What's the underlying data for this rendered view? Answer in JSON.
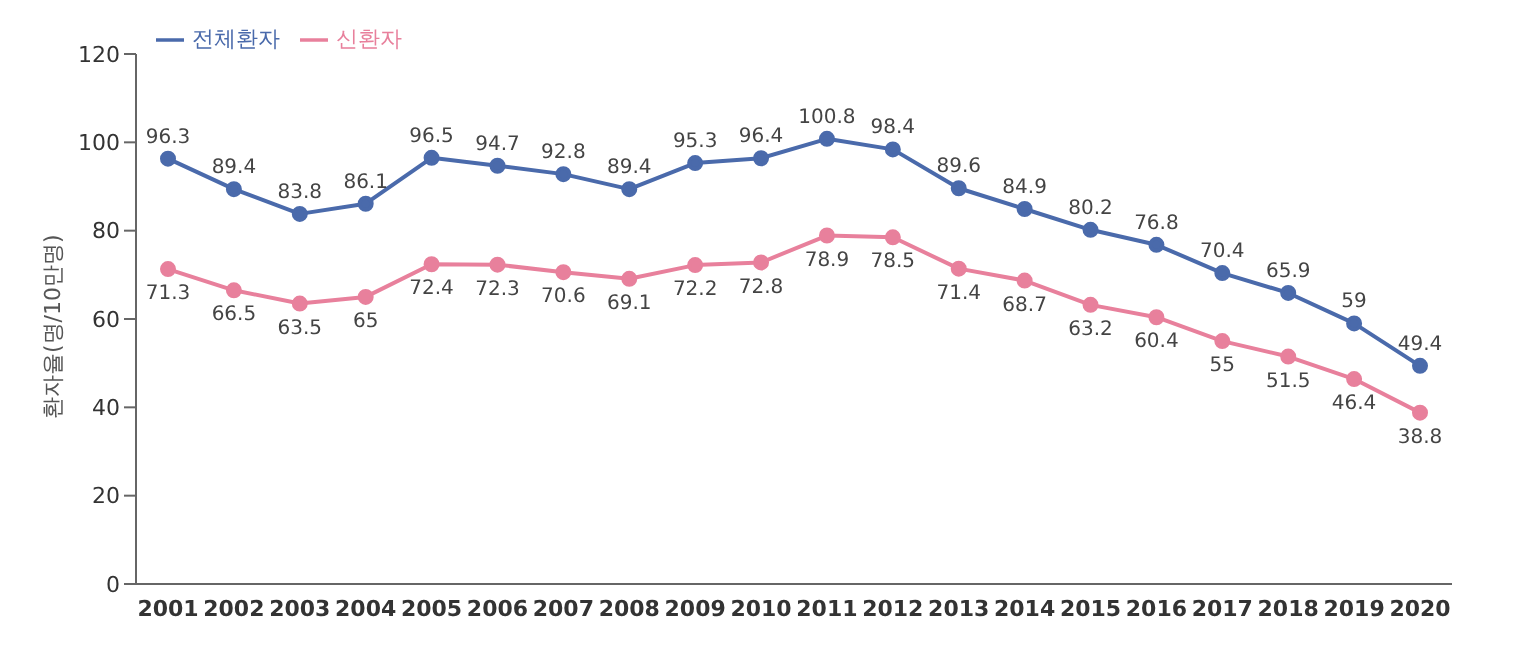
{
  "chart_data": {
    "type": "line",
    "ylabel": "환자율(명/10만명)",
    "categories": [
      "2001",
      "2002",
      "2003",
      "2004",
      "2005",
      "2006",
      "2007",
      "2008",
      "2009",
      "2010",
      "2011",
      "2012",
      "2013",
      "2014",
      "2015",
      "2016",
      "2017",
      "2018",
      "2019",
      "2020"
    ],
    "series": [
      {
        "name": "전체환자",
        "color": "#4a6aab",
        "values": [
          96.3,
          89.4,
          83.8,
          86.1,
          96.5,
          94.7,
          92.8,
          89.4,
          95.3,
          96.4,
          100.8,
          98.4,
          89.6,
          84.9,
          80.2,
          76.8,
          70.4,
          65.9,
          59,
          49.4
        ]
      },
      {
        "name": "신환자",
        "color": "#e8809c",
        "values": [
          71.3,
          66.5,
          63.5,
          65,
          72.4,
          72.3,
          70.6,
          69.1,
          72.2,
          72.8,
          78.9,
          78.5,
          71.4,
          68.7,
          63.2,
          60.4,
          55,
          51.5,
          46.4,
          38.8
        ]
      }
    ],
    "ylim": [
      0,
      120
    ],
    "yticks": [
      0,
      20,
      40,
      60,
      80,
      100,
      120
    ],
    "grid": false,
    "legend": "top left",
    "marker": "circle",
    "line_style": "solid",
    "data_labels": true
  }
}
